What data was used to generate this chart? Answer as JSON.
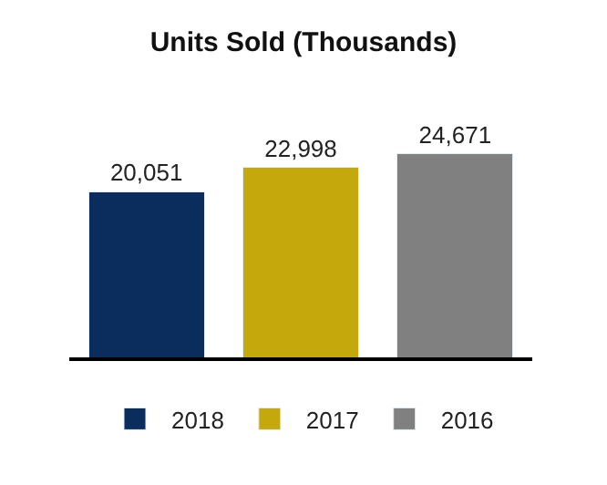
{
  "chart_data": {
    "type": "bar",
    "title": "Units Sold (Thousands)",
    "categories": [
      null,
      null,
      null
    ],
    "stacked": true,
    "series": [
      {
        "name": "2018",
        "color": "#0a2d5e",
        "values": [
          20051,
          null,
          null
        ],
        "value_labels": [
          "20,051",
          null,
          null
        ]
      },
      {
        "name": "2017",
        "color": "#c4a80c",
        "values": [
          null,
          22998,
          null
        ],
        "value_labels": [
          null,
          "22,998",
          null
        ]
      },
      {
        "name": "2016",
        "color": "#808080",
        "values": [
          null,
          null,
          24671
        ],
        "value_labels": [
          null,
          null,
          "24,671"
        ]
      }
    ],
    "legend": "bottom",
    "tick_labels": false
  }
}
